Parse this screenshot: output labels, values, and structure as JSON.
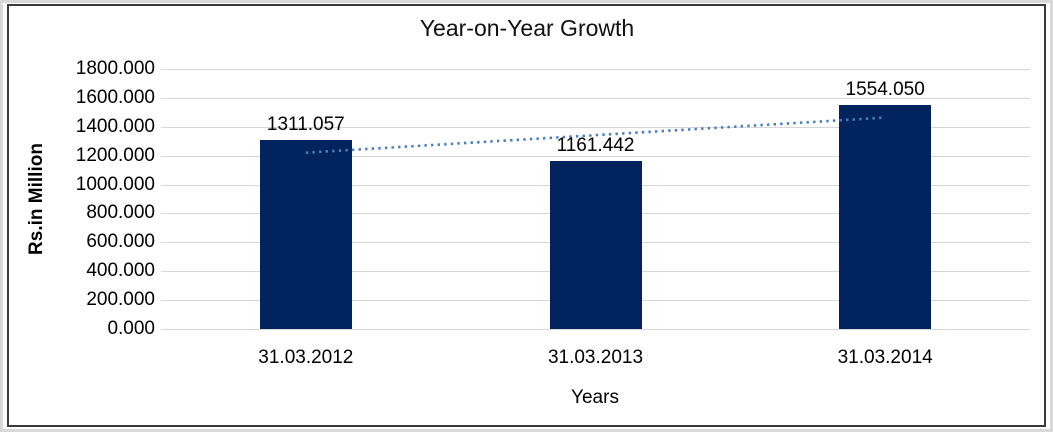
{
  "chart_data": {
    "type": "bar",
    "title": "Year-on-Year Growth",
    "xlabel": "Years",
    "ylabel": "Rs.in Million",
    "categories": [
      "31.03.2012",
      "31.03.2013",
      "31.03.2014"
    ],
    "values": [
      1311.057,
      1161.442,
      1554.05
    ],
    "value_labels": [
      "1311.057",
      "1161.442",
      "1554.050"
    ],
    "ylim": [
      0,
      1800
    ],
    "ytick_step": 200,
    "ytick_labels": [
      "1800.000",
      "1600.000",
      "1400.000",
      "1200.000",
      "1000.000",
      "800.000",
      "600.000",
      "400.000",
      "200.000",
      "0.000"
    ],
    "grid": true,
    "legend": "none",
    "bar_color": "#02245e",
    "gridline_color": "#d6d6d6",
    "trendline": {
      "type": "linear",
      "style": "dotted",
      "color": "#4a7ebb",
      "start_value": 1220.69,
      "end_value": 1463.68
    }
  }
}
